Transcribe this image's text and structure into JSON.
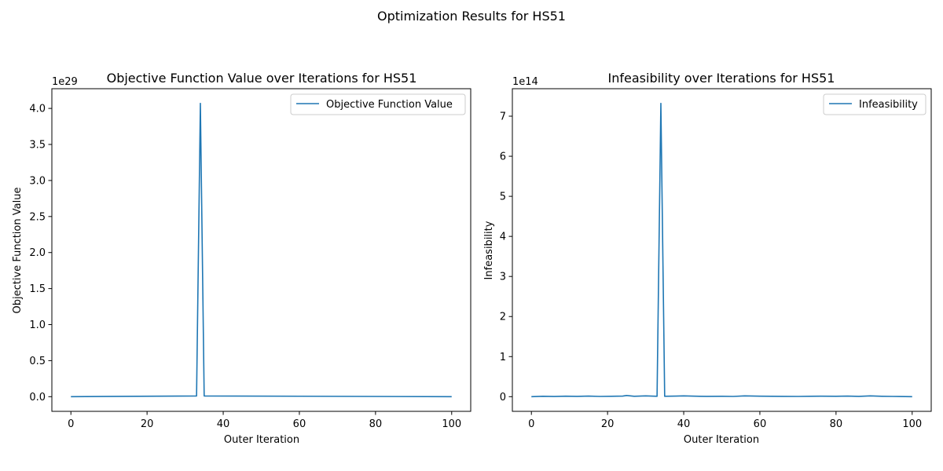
{
  "suptitle": "Optimization Results for HS51",
  "chart_data": [
    {
      "type": "line",
      "title": "Objective Function Value over Iterations for HS51",
      "xlabel": "Outer Iteration",
      "ylabel": "Objective Function Value",
      "offset_label": "1e29",
      "scale": 1e+29,
      "xlim": [
        -5,
        105
      ],
      "ylim": [
        -0.2035,
        4.2735
      ],
      "xticks": [
        0,
        20,
        40,
        60,
        80,
        100
      ],
      "xtick_labels": [
        "0",
        "20",
        "40",
        "60",
        "80",
        "100"
      ],
      "yticks": [
        0.0,
        0.5,
        1.0,
        1.5,
        2.0,
        2.5,
        3.0,
        3.5,
        4.0
      ],
      "ytick_labels": [
        "0.0",
        "0.5",
        "1.0",
        "1.5",
        "2.0",
        "2.5",
        "3.0",
        "3.5",
        "4.0"
      ],
      "legend": "top-right",
      "grid": false,
      "color": "#1f77b4",
      "series": [
        {
          "name": "Objective Function Value",
          "x": [
            0,
            33,
            34,
            35,
            100
          ],
          "y": [
            0,
            0.01,
            4.07,
            0.01,
            0
          ]
        }
      ]
    },
    {
      "type": "line",
      "title": "Infeasibility over Iterations for HS51",
      "xlabel": "Outer Iteration",
      "ylabel": "Infeasibility",
      "offset_label": "1e14",
      "scale": 100000000000000.0,
      "xlim": [
        -5,
        105
      ],
      "ylim": [
        -0.366,
        7.686
      ],
      "xticks": [
        0,
        20,
        40,
        60,
        80,
        100
      ],
      "xtick_labels": [
        "0",
        "20",
        "40",
        "60",
        "80",
        "100"
      ],
      "yticks": [
        0,
        1,
        2,
        3,
        4,
        5,
        6,
        7
      ],
      "ytick_labels": [
        "0",
        "1",
        "2",
        "3",
        "4",
        "5",
        "6",
        "7"
      ],
      "legend": "top-right",
      "grid": false,
      "color": "#1f77b4",
      "series": [
        {
          "name": "Infeasibility",
          "x": [
            0,
            3,
            6,
            9,
            12,
            15,
            18,
            21,
            24,
            25,
            27,
            30,
            33,
            34,
            35,
            38,
            40,
            43,
            46,
            50,
            53,
            56,
            60,
            63,
            66,
            70,
            73,
            76,
            80,
            83,
            86,
            89,
            92,
            95,
            100
          ],
          "y": [
            0,
            0.01,
            0.005,
            0.012,
            0.008,
            0.015,
            0.006,
            0.01,
            0.014,
            0.03,
            0.01,
            0.02,
            0.01,
            7.32,
            0.01,
            0.015,
            0.02,
            0.012,
            0.008,
            0.01,
            0.006,
            0.02,
            0.012,
            0.01,
            0.008,
            0.006,
            0.01,
            0.012,
            0.009,
            0.015,
            0.008,
            0.02,
            0.01,
            0.006,
            0
          ]
        }
      ]
    }
  ]
}
